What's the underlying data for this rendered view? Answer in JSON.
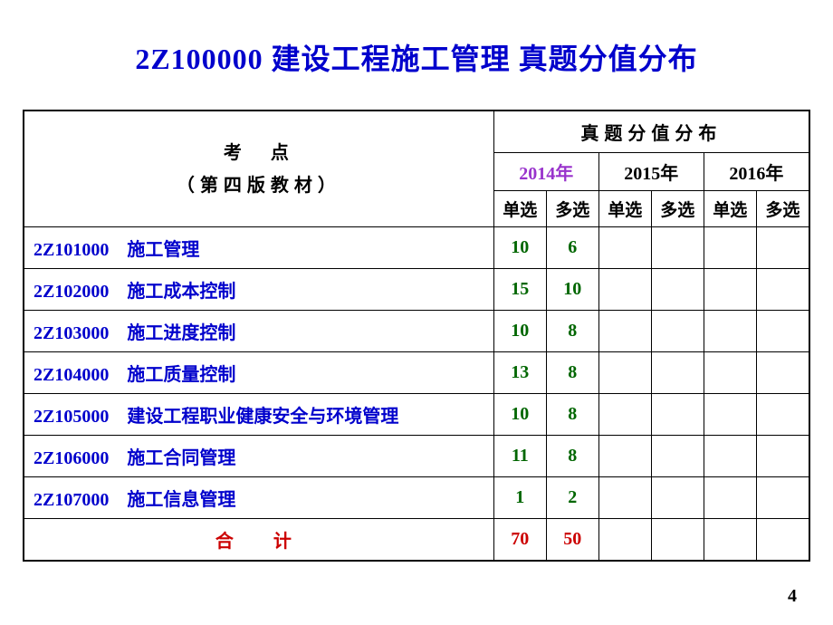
{
  "title": "2Z100000 建设工程施工管理 真题分值分布",
  "header": {
    "left_line1": "考　点",
    "left_line2": "（第四版教材）",
    "right": "真题分值分布"
  },
  "years": {
    "y2014": "2014年",
    "y2015": "2015年",
    "y2016": "2016年"
  },
  "subheaders": {
    "single": "单选",
    "multi": "多选"
  },
  "rows": [
    {
      "code": "2Z101000",
      "topic": "施工管理",
      "v2014s": "10",
      "v2014m": "6"
    },
    {
      "code": "2Z102000",
      "topic": "施工成本控制",
      "v2014s": "15",
      "v2014m": "10"
    },
    {
      "code": "2Z103000",
      "topic": "施工进度控制",
      "v2014s": "10",
      "v2014m": "8"
    },
    {
      "code": "2Z104000",
      "topic": "施工质量控制",
      "v2014s": "13",
      "v2014m": "8"
    },
    {
      "code": "2Z105000",
      "topic": "建设工程职业健康安全与环境管理",
      "v2014s": "10",
      "v2014m": "8"
    },
    {
      "code": "2Z106000",
      "topic": "施工合同管理",
      "v2014s": "11",
      "v2014m": "8"
    },
    {
      "code": "2Z107000",
      "topic": "施工信息管理",
      "v2014s": "1",
      "v2014m": "2"
    }
  ],
  "total": {
    "label": "合　计",
    "v2014s": "70",
    "v2014m": "50"
  },
  "page_number": "4",
  "colors": {
    "title": "#0000cc",
    "topic": "#0000cc",
    "value": "#006600",
    "total": "#cc0000",
    "year2014": "#9933cc",
    "border": "#000000",
    "background": "#ffffff"
  }
}
